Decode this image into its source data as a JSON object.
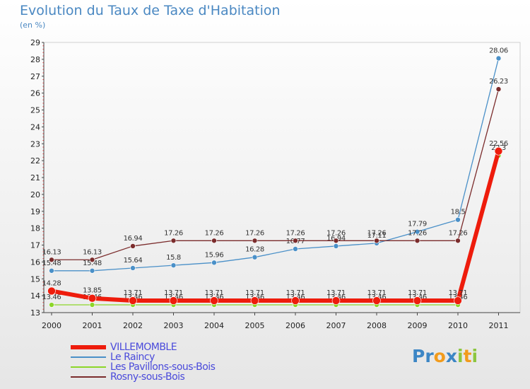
{
  "title": "Evolution du Taux de Taxe d'Habitation",
  "unit": "(en %)",
  "brand": {
    "name": "Proxiti",
    "letters": [
      {
        "ch": "P",
        "color": "#3c86c5"
      },
      {
        "ch": "r",
        "color": "#3c86c5"
      },
      {
        "ch": "o",
        "color": "#f29b1c"
      },
      {
        "ch": "x",
        "color": "#3c86c5"
      },
      {
        "ch": "i",
        "color": "#8cc63f"
      },
      {
        "ch": "t",
        "color": "#f29b1c"
      },
      {
        "ch": "i",
        "color": "#8cc63f"
      }
    ]
  },
  "chart_data": {
    "type": "line",
    "title": "Evolution du Taux de Taxe d'Habitation",
    "ylabel": "(en %)",
    "xlabel": "",
    "x": [
      "2000",
      "2001",
      "2002",
      "2003",
      "2004",
      "2005",
      "2006",
      "2007",
      "2008",
      "2009",
      "2010",
      "2011"
    ],
    "ylim": [
      13,
      29
    ],
    "yticks": [
      13,
      14,
      15,
      16,
      17,
      18,
      19,
      20,
      21,
      22,
      23,
      24,
      25,
      26,
      27,
      28,
      29
    ],
    "grid": false,
    "legend_position": "bottom-left",
    "series": [
      {
        "name": "Le Raincy",
        "color": "#4a90c8",
        "width": 1.3,
        "values": [
          15.48,
          15.48,
          15.64,
          15.8,
          15.96,
          16.28,
          16.77,
          16.94,
          17.11,
          17.79,
          18.5,
          28.06
        ],
        "labels": [
          "15.48",
          "15.48",
          "15.64",
          "15.8",
          "15.96",
          "16.28",
          "16.77",
          "16.94",
          "17.11",
          "17.79",
          "18.5",
          "28.06"
        ]
      },
      {
        "name": "Rosny-sous-Bois",
        "color": "#7b2c2c",
        "width": 1.3,
        "values": [
          16.13,
          16.13,
          16.94,
          17.26,
          17.26,
          17.26,
          17.26,
          17.26,
          17.26,
          17.26,
          17.26,
          26.23
        ],
        "labels": [
          "16.13",
          "16.13",
          "16.94",
          "17.26",
          "17.26",
          "17.26",
          "17.26",
          "17.26",
          "17.26",
          "17.26",
          "17.26",
          "26.23"
        ]
      },
      {
        "name": "Les Pavillons-sous-Bois",
        "color": "#8cd629",
        "width": 1.3,
        "values": [
          13.46,
          13.46,
          13.46,
          13.46,
          13.46,
          13.46,
          13.46,
          13.46,
          13.46,
          13.46,
          13.46,
          22.3
        ],
        "labels": [
          "13.46",
          "13.46",
          "13.46",
          "13.46",
          "13.46",
          "13.46",
          "13.46",
          "13.46",
          "13.46",
          "13.46",
          "13.46",
          "22.3"
        ]
      },
      {
        "name": "VILLEMOMBLE",
        "color": "#ee1c0c",
        "width": 6,
        "values": [
          14.28,
          13.85,
          13.71,
          13.71,
          13.71,
          13.71,
          13.71,
          13.71,
          13.71,
          13.71,
          13.71,
          22.56
        ],
        "labels": [
          "14.28",
          "13.85",
          "13.71",
          "13.71",
          "13.71",
          "13.71",
          "13.71",
          "13.71",
          "13.71",
          "13.71",
          "13.71",
          "22.56"
        ]
      }
    ],
    "legend": [
      {
        "name": "VILLEMOMBLE",
        "color": "#ee1c0c",
        "width": 6
      },
      {
        "name": "Le Raincy",
        "color": "#4a90c8",
        "width": 1.5
      },
      {
        "name": "Les Pavillons-sous-Bois",
        "color": "#8cd629",
        "width": 1.5
      },
      {
        "name": "Rosny-sous-Bois",
        "color": "#7b2c2c",
        "width": 1.5
      }
    ]
  }
}
